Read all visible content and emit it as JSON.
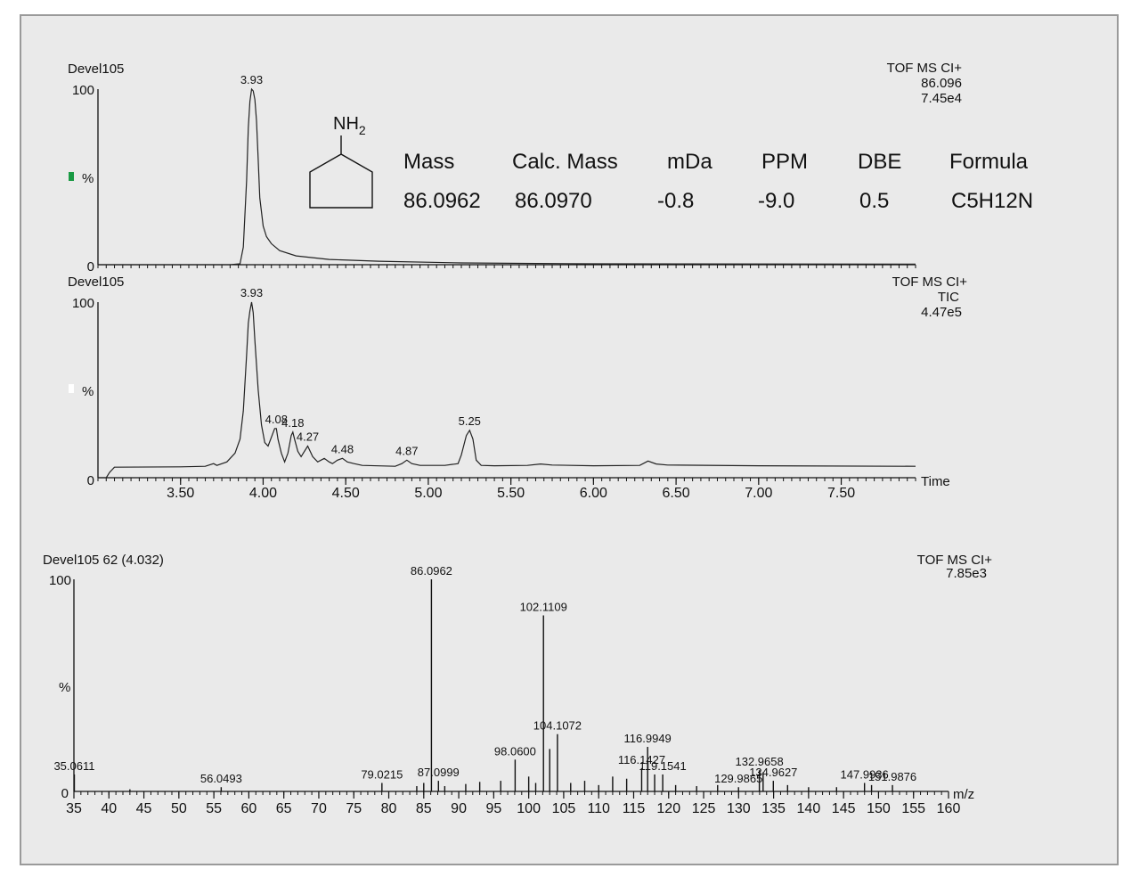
{
  "chart_data": [
    {
      "type": "line",
      "title": "Devel105",
      "info": [
        "TOF MS CI+",
        "86.096",
        "7.45e4"
      ],
      "ylabel": "%",
      "ylim": [
        0,
        100
      ],
      "y_ticks": [
        "100",
        "0"
      ],
      "xlim": [
        3.0,
        7.95
      ],
      "legend_marker_color": "#1a9a44",
      "x": [
        3.0,
        3.6,
        3.8,
        3.86,
        3.88,
        3.9,
        3.91,
        3.92,
        3.93,
        3.94,
        3.95,
        3.96,
        3.97,
        3.98,
        4.0,
        4.02,
        4.05,
        4.1,
        4.2,
        4.4,
        4.7,
        5.2,
        6.0,
        7.95
      ],
      "y": [
        0,
        0,
        0,
        0.5,
        10,
        48,
        78,
        93,
        100,
        99,
        94,
        82,
        60,
        38,
        22,
        16,
        12,
        8,
        5,
        3,
        2,
        1,
        0.5,
        0.3
      ],
      "peak_labels": [
        {
          "x": 3.93,
          "label": "3.93"
        }
      ]
    },
    {
      "type": "line",
      "title": "Devel105",
      "info": [
        "TOF MS CI+",
        "TIC",
        "4.47e5"
      ],
      "ylabel": "%",
      "xlabel": "Time",
      "ylim": [
        0,
        100
      ],
      "y_ticks": [
        "100",
        "0"
      ],
      "xlim": [
        3.0,
        7.95
      ],
      "x_ticks": [
        3.5,
        4.0,
        4.5,
        5.0,
        5.5,
        6.0,
        6.5,
        7.0,
        7.5
      ],
      "x_tick_labels": [
        "3.50",
        "4.00",
        "4.50",
        "5.00",
        "5.50",
        "6.00",
        "6.50",
        "7.00",
        "7.50"
      ],
      "legend_marker_color": "#ffffff",
      "x": [
        3.0,
        3.05,
        3.07,
        3.1,
        3.5,
        3.65,
        3.7,
        3.72,
        3.78,
        3.83,
        3.86,
        3.88,
        3.9,
        3.91,
        3.92,
        3.93,
        3.94,
        3.95,
        3.97,
        3.99,
        4.01,
        4.03,
        4.05,
        4.07,
        4.08,
        4.09,
        4.11,
        4.13,
        4.15,
        4.17,
        4.18,
        4.19,
        4.21,
        4.23,
        4.25,
        4.27,
        4.3,
        4.33,
        4.35,
        4.37,
        4.4,
        4.42,
        4.45,
        4.48,
        4.51,
        4.55,
        4.6,
        4.8,
        4.84,
        4.87,
        4.9,
        4.95,
        5.1,
        5.18,
        5.2,
        5.23,
        5.25,
        5.27,
        5.29,
        5.32,
        5.4,
        5.6,
        5.68,
        5.75,
        6.0,
        6.28,
        6.33,
        6.38,
        6.45,
        7.0,
        7.95
      ],
      "y": [
        0,
        0,
        3,
        6,
        6.2,
        6.5,
        8,
        7,
        9,
        14,
        22,
        38,
        70,
        88,
        95,
        100,
        94,
        78,
        50,
        30,
        20,
        18,
        23,
        28,
        28,
        22,
        14,
        9,
        14,
        24,
        26,
        22,
        15,
        12,
        15,
        18,
        12,
        9,
        10,
        11,
        9,
        8,
        10,
        11,
        9,
        8,
        7,
        6.5,
        8,
        10,
        8,
        7,
        7,
        8,
        13,
        24,
        27,
        22,
        10,
        7,
        6.8,
        7,
        7.8,
        7.2,
        6.8,
        7,
        9.5,
        7.8,
        7.2,
        6.8,
        6.5
      ],
      "peak_labels": [
        {
          "x": 3.93,
          "label": "3.93"
        },
        {
          "x": 4.08,
          "label": "4.08"
        },
        {
          "x": 4.18,
          "label": "4.18"
        },
        {
          "x": 4.27,
          "label": "4.27"
        },
        {
          "x": 4.48,
          "label": "4.48"
        },
        {
          "x": 4.87,
          "label": "4.87"
        },
        {
          "x": 5.25,
          "label": "5.25"
        }
      ]
    },
    {
      "type": "bar",
      "title": "Devel105 62 (4.032)",
      "info": [
        "TOF MS CI+",
        "7.85e3"
      ],
      "ylabel": "%",
      "xlabel": "m/z",
      "ylim": [
        0,
        100
      ],
      "y_ticks": [
        "100",
        "0"
      ],
      "xlim": [
        35,
        160
      ],
      "x_ticks": [
        35,
        40,
        45,
        50,
        55,
        60,
        65,
        70,
        75,
        80,
        85,
        90,
        95,
        100,
        105,
        110,
        115,
        120,
        125,
        130,
        135,
        140,
        145,
        150,
        155,
        160
      ],
      "x_tick_labels": [
        "35",
        "40",
        "45",
        "50",
        "55",
        "60",
        "65",
        "70",
        "75",
        "80",
        "85",
        "90",
        "95",
        "100",
        "105",
        "110",
        "115",
        "120",
        "125",
        "130",
        "135",
        "140",
        "145",
        "150",
        "155",
        "160"
      ],
      "x": [
        35.0611,
        43.0,
        56.0493,
        79.0215,
        84.0,
        85.0,
        86.0962,
        87.0999,
        88.0,
        91.0,
        93.0,
        96.0,
        98.06,
        100.0,
        101.0,
        102.1109,
        103.0,
        104.1072,
        106.0,
        108.0,
        110.0,
        112.0,
        114.0,
        116.1427,
        116.9949,
        118.0,
        119.1541,
        121.0,
        124.0,
        127.0,
        129.9865,
        132.9658,
        133.5,
        134.9627,
        137.0,
        140.0,
        144.0,
        147.9936,
        149.0,
        151.9876
      ],
      "y": [
        8,
        1,
        2,
        4,
        2.5,
        4,
        100,
        5,
        2.5,
        3.5,
        4.5,
        5,
        15,
        7,
        4,
        83,
        20,
        27,
        4,
        5,
        3,
        7,
        6,
        11,
        21,
        8,
        8,
        3,
        2.5,
        3,
        2,
        10,
        9,
        5,
        3,
        2,
        2,
        4,
        3,
        3
      ],
      "peak_labels": [
        {
          "x": 35.0611,
          "label": "35.0611"
        },
        {
          "x": 56.0493,
          "label": "56.0493"
        },
        {
          "x": 79.0215,
          "label": "79.0215"
        },
        {
          "x": 86.0962,
          "label": "86.0962"
        },
        {
          "x": 87.0999,
          "label": "87.0999"
        },
        {
          "x": 98.06,
          "label": "98.0600"
        },
        {
          "x": 102.1109,
          "label": "102.1109"
        },
        {
          "x": 104.1072,
          "label": "104.1072"
        },
        {
          "x": 116.1427,
          "label": "116.1427"
        },
        {
          "x": 116.9949,
          "label": "116.9949"
        },
        {
          "x": 119.1541,
          "label": "119.1541"
        },
        {
          "x": 129.9865,
          "label": "129.9865"
        },
        {
          "x": 132.9658,
          "label": "132.9658"
        },
        {
          "x": 134.9627,
          "label": "134.9627"
        },
        {
          "x": 147.9936,
          "label": "147.9936"
        },
        {
          "x": 151.9876,
          "label": "151.9876"
        }
      ]
    }
  ],
  "structure": {
    "group_label": "NH",
    "subscript": "2"
  },
  "results_table": {
    "headers": [
      "Mass",
      "Calc. Mass",
      "mDa",
      "PPM",
      "DBE",
      "Formula"
    ],
    "row": [
      "86.0962",
      "86.0970",
      "-0.8",
      "-9.0",
      "0.5",
      "C5H12N"
    ]
  }
}
